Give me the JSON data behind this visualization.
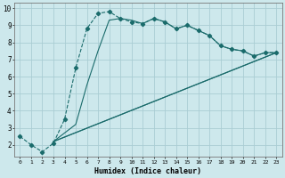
{
  "xlabel": "Humidex (Indice chaleur)",
  "bg_color": "#cde8ec",
  "grid_color": "#aacdd4",
  "line_color": "#1a6b6b",
  "xlim": [
    -0.5,
    23.5
  ],
  "ylim": [
    1.3,
    10.3
  ],
  "xticks": [
    0,
    1,
    2,
    3,
    4,
    5,
    6,
    7,
    8,
    9,
    10,
    11,
    12,
    13,
    14,
    15,
    16,
    17,
    18,
    19,
    20,
    21,
    22,
    23
  ],
  "yticks": [
    2,
    3,
    4,
    5,
    6,
    7,
    8,
    9,
    10
  ],
  "series1_x": [
    0,
    1,
    2,
    3,
    4,
    5,
    6,
    7,
    8,
    9,
    10,
    11,
    12,
    13,
    14,
    15,
    16,
    17,
    18,
    19,
    20,
    21,
    22,
    23
  ],
  "series1_y": [
    2.5,
    2.0,
    1.6,
    2.1,
    3.5,
    6.5,
    8.8,
    9.7,
    9.8,
    9.4,
    9.2,
    9.1,
    9.4,
    9.2,
    8.8,
    9.0,
    8.7,
    8.4,
    7.8,
    7.6,
    7.5,
    7.2,
    7.4,
    7.4
  ],
  "series2_x": [
    3,
    5,
    6,
    7,
    8,
    9,
    10,
    11,
    12,
    13,
    14,
    15,
    16,
    17,
    18,
    19,
    20,
    21,
    22,
    23
  ],
  "series2_y": [
    2.2,
    3.2,
    5.5,
    7.5,
    9.3,
    9.4,
    9.3,
    9.1,
    9.4,
    9.2,
    8.8,
    9.0,
    8.7,
    8.4,
    7.8,
    7.6,
    7.5,
    7.2,
    7.4,
    7.4
  ],
  "series3_x": [
    3,
    23
  ],
  "series3_y": [
    2.2,
    7.4
  ],
  "series4_x": [
    3,
    23
  ],
  "series4_y": [
    2.2,
    7.4
  ]
}
